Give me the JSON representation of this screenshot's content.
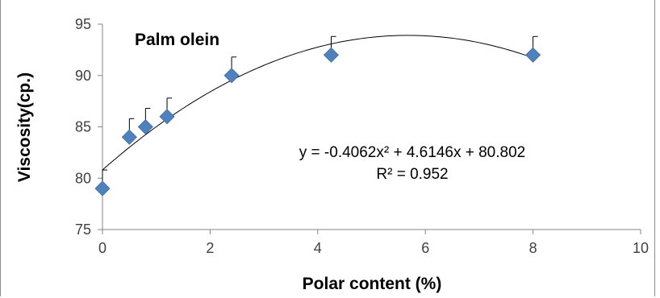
{
  "chart_data": {
    "type": "scatter",
    "title": "Palm olein",
    "xlabel": "Polar content (%)",
    "ylabel": "Viscosity(cp.)",
    "xlim": [
      0,
      10
    ],
    "ylim": [
      75,
      95
    ],
    "xticks": [
      "0",
      "2",
      "4",
      "6",
      "8",
      "10"
    ],
    "yticks": [
      "75",
      "80",
      "85",
      "90",
      "95"
    ],
    "grid": false,
    "series": [
      {
        "x": [
          0,
          0.5,
          0.8,
          1.2,
          2.4,
          4.25,
          8
        ],
        "y": [
          79,
          84,
          85,
          86,
          90,
          92,
          92
        ],
        "error_plus": [
          1.8,
          1.8,
          1.8,
          1.8,
          1.8,
          1.8,
          1.8
        ],
        "marker": "diamond",
        "color": "#4f81bd"
      }
    ],
    "trendline": {
      "type": "polynomial",
      "a": -0.4062,
      "b": 4.6146,
      "c": 80.802,
      "x_range": [
        0,
        8
      ],
      "color": "#000000"
    },
    "annotations": {
      "equation": "y = -0.4062x² + 4.6146x + 80.802",
      "r2": "R² = 0.952"
    }
  }
}
